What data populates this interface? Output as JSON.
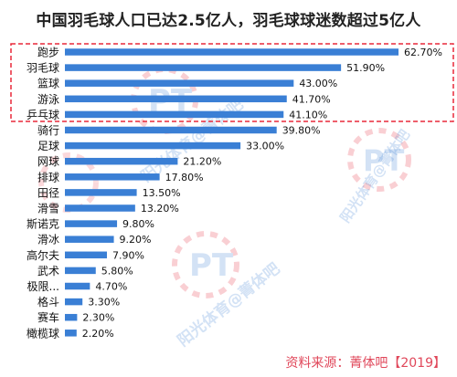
{
  "title": "中国羽毛球人口已达2.5亿人，羽毛球球迷数超过5亿人",
  "source": "资料来源：菁体吧【2019】",
  "watermark": {
    "text": "阳光体育@菁体吧",
    "logo": "PT"
  },
  "colors": {
    "bar": "#3a7fd5",
    "highlight_box": "#e8283a",
    "source_text": "#e0475a"
  },
  "chart_data": {
    "type": "bar",
    "orientation": "horizontal",
    "categories": [
      "跑步",
      "羽毛球",
      "篮球",
      "游泳",
      "乒乓球",
      "骑行",
      "足球",
      "网球",
      "排球",
      "田径",
      "滑雪",
      "斯诺克",
      "滑冰",
      "高尔夫",
      "武术",
      "极限...",
      "格斗",
      "赛车",
      "橄榄球"
    ],
    "values": [
      62.7,
      51.9,
      43.0,
      41.7,
      41.1,
      39.8,
      33.0,
      21.2,
      17.8,
      13.5,
      13.2,
      9.8,
      9.2,
      7.9,
      5.8,
      4.7,
      3.3,
      2.3,
      2.2
    ],
    "value_labels": [
      "62.70%",
      "51.90%",
      "43.00%",
      "41.70%",
      "41.10%",
      "39.80%",
      "33.00%",
      "21.20%",
      "17.80%",
      "13.50%",
      "13.20%",
      "9.80%",
      "9.20%",
      "7.90%",
      "5.80%",
      "4.70%",
      "3.30%",
      "2.30%",
      "2.20%"
    ],
    "unit": "%",
    "xlim": [
      0,
      62.7
    ],
    "highlighted_categories": [
      "跑步",
      "羽毛球",
      "篮球",
      "游泳",
      "乒乓球"
    ],
    "grid": false,
    "legend": "none"
  }
}
